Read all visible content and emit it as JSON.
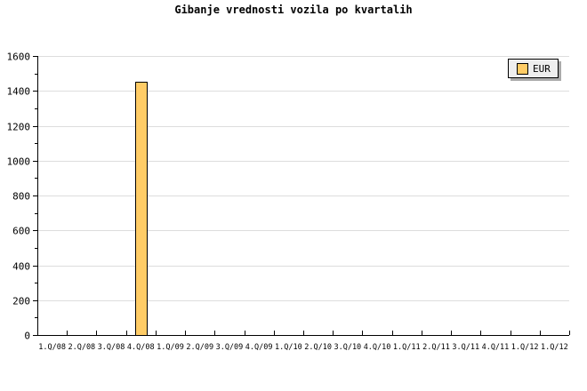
{
  "chart_data": {
    "type": "bar",
    "title": "Gibanje vrednosti vozila po kvartalih",
    "categories": [
      "1.Q/08",
      "2.Q/08",
      "3.Q/08",
      "4.Q/08",
      "1.Q/09",
      "2.Q/09",
      "3.Q/09",
      "4.Q/09",
      "1.Q/10",
      "2.Q/10",
      "3.Q/10",
      "4.Q/10",
      "1.Q/11",
      "2.Q/11",
      "3.Q/11",
      "4.Q/11",
      "1.Q/12",
      "1.Q/12"
    ],
    "series": [
      {
        "name": "EUR",
        "color": "#ffcc66",
        "values": [
          null,
          null,
          null,
          1450,
          null,
          null,
          null,
          null,
          null,
          null,
          null,
          null,
          null,
          null,
          null,
          null,
          null,
          null
        ]
      }
    ],
    "ylim": [
      0,
      1600
    ],
    "yticks": [
      0,
      200,
      400,
      600,
      800,
      1000,
      1200,
      1400,
      1600
    ],
    "grid": true,
    "legend": "top-right"
  }
}
